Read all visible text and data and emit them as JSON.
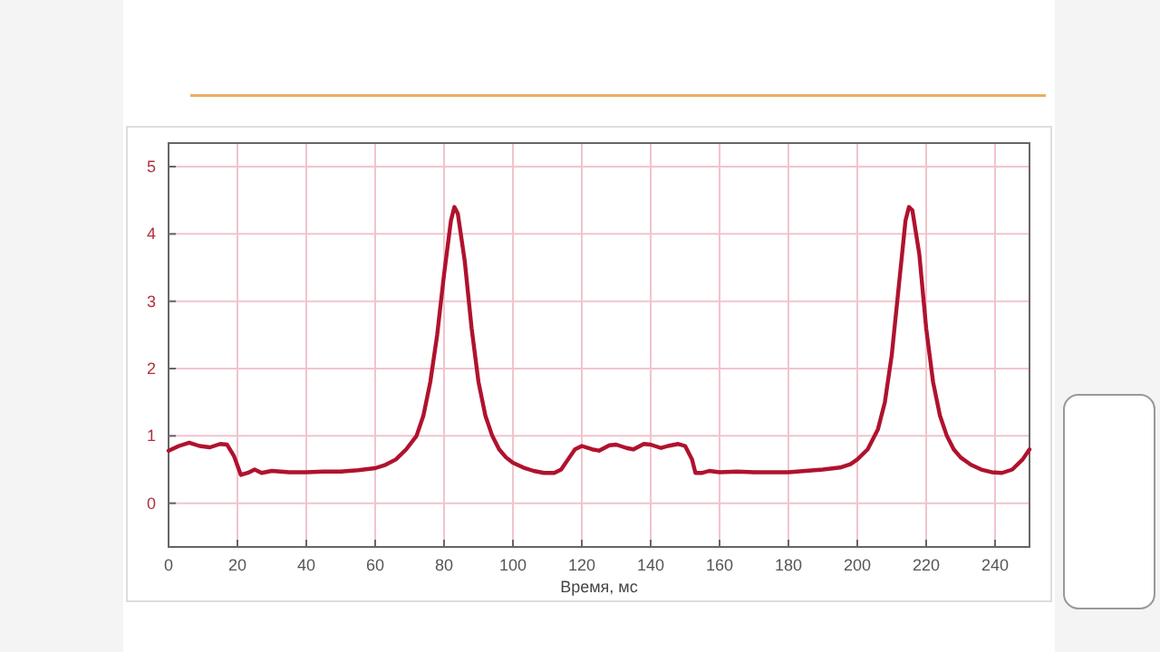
{
  "chart_data": {
    "type": "line",
    "xlabel": "Время, мс",
    "xlim": [
      0,
      250
    ],
    "xticks": [
      0,
      20,
      40,
      60,
      80,
      100,
      120,
      140,
      160,
      180,
      200,
      220,
      240
    ],
    "ylim": [
      -0.65,
      5.35
    ],
    "yticks": [
      0,
      1,
      2,
      3,
      4,
      5
    ],
    "grid": true,
    "marker": "none",
    "line_style": "solid",
    "series": [
      {
        "color": "#b0122e",
        "x": [
          0,
          3,
          6,
          9,
          12,
          15,
          17,
          19,
          21,
          23,
          25,
          27,
          30,
          35,
          40,
          45,
          50,
          55,
          60,
          63,
          66,
          69,
          72,
          74,
          76,
          78,
          80,
          82,
          83,
          84,
          86,
          88,
          90,
          92,
          94,
          96,
          98,
          100,
          103,
          106,
          109,
          112,
          114,
          116,
          118,
          120,
          123,
          125,
          128,
          130,
          133,
          135,
          138,
          140,
          143,
          145,
          148,
          150,
          152,
          153,
          155,
          157,
          160,
          165,
          170,
          180,
          185,
          190,
          195,
          198,
          200,
          203,
          206,
          208,
          210,
          212,
          214,
          215,
          216,
          218,
          220,
          222,
          224,
          226,
          228,
          230,
          233,
          236,
          239,
          242,
          245,
          248,
          250
        ],
        "values": [
          0.78,
          0.85,
          0.9,
          0.85,
          0.83,
          0.88,
          0.87,
          0.7,
          0.42,
          0.45,
          0.5,
          0.45,
          0.48,
          0.46,
          0.46,
          0.47,
          0.47,
          0.49,
          0.52,
          0.57,
          0.65,
          0.8,
          1.0,
          1.3,
          1.8,
          2.5,
          3.4,
          4.2,
          4.4,
          4.3,
          3.6,
          2.6,
          1.8,
          1.3,
          1.0,
          0.8,
          0.68,
          0.6,
          0.53,
          0.48,
          0.45,
          0.45,
          0.5,
          0.65,
          0.8,
          0.85,
          0.8,
          0.78,
          0.86,
          0.87,
          0.82,
          0.8,
          0.88,
          0.87,
          0.82,
          0.85,
          0.88,
          0.85,
          0.65,
          0.45,
          0.45,
          0.48,
          0.46,
          0.47,
          0.46,
          0.46,
          0.48,
          0.5,
          0.53,
          0.58,
          0.65,
          0.8,
          1.1,
          1.5,
          2.2,
          3.2,
          4.2,
          4.4,
          4.35,
          3.7,
          2.6,
          1.8,
          1.3,
          1.0,
          0.8,
          0.68,
          0.57,
          0.5,
          0.46,
          0.45,
          0.5,
          0.65,
          0.8
        ]
      }
    ]
  }
}
